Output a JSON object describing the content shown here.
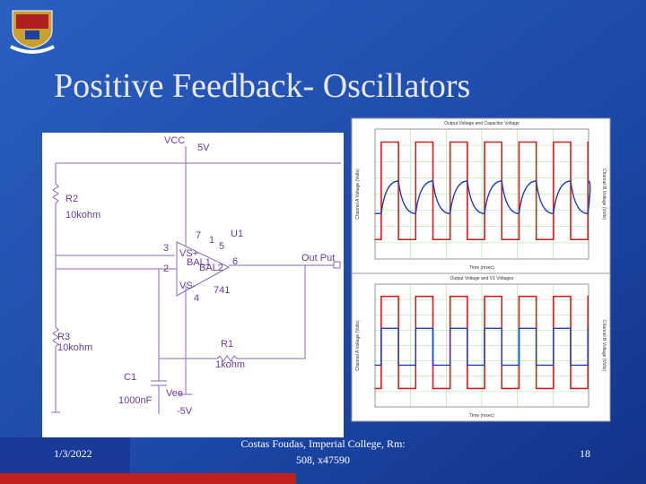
{
  "header": {
    "title": "Positive Feedback- Oscillators"
  },
  "circuit": {
    "labels": [
      "VCC",
      "5V",
      "R2",
      "10kohm",
      "7",
      "1",
      "U1",
      "3",
      "5",
      "VS+",
      "BAL1",
      "6",
      "2",
      "BAL2",
      "VS-",
      "4",
      "741",
      "Out Put",
      "R3",
      "10kohm",
      "R1",
      "1kohm",
      "C1",
      "Vee",
      "1000nF",
      "-5V"
    ]
  },
  "plots": [
    {
      "title": "Output Voltage and Capacitor Voltage",
      "x_label": "Time (msec)",
      "y_label": "Channel A Voltage (Volts)",
      "y2_label": "Channel B Voltage (Volts)"
    },
    {
      "title": "Output Voltage and V1 Voltages",
      "x_label": "Time (msec)",
      "y_label": "Channel A Voltage (Volts)",
      "y2_label": "Channel B Voltage (Volts)"
    }
  ],
  "footer": {
    "date": "1/3/2022",
    "center_lines": [
      "Costas Foudas, Imperial College, Rm:",
      "508, x47590"
    ],
    "page": "18"
  }
}
